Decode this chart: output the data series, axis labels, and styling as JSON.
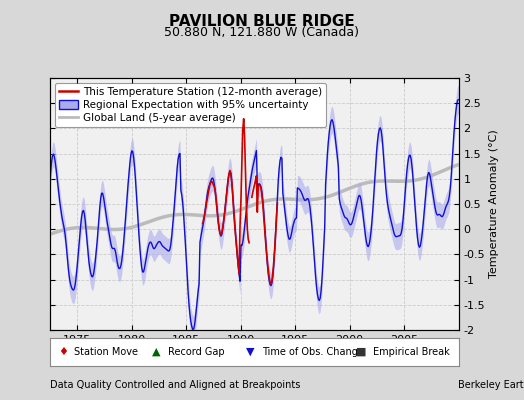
{
  "title": "PAVILION BLUE RIDGE",
  "subtitle": "50.880 N, 121.880 W (Canada)",
  "ylabel": "Temperature Anomaly (°C)",
  "footer_left": "Data Quality Controlled and Aligned at Breakpoints",
  "footer_right": "Berkeley Earth",
  "xlim": [
    1972.5,
    2010.0
  ],
  "ylim": [
    -2,
    3
  ],
  "yticks": [
    -2,
    -1.5,
    -1,
    -0.5,
    0,
    0.5,
    1,
    1.5,
    2,
    2.5,
    3
  ],
  "xticks": [
    1975,
    1980,
    1985,
    1990,
    1995,
    2000,
    2005
  ],
  "bg_color": "#d8d8d8",
  "plot_bg_color": "#f0f0f0",
  "regional_color": "#1111cc",
  "regional_fill_color": "#aaaaee",
  "station_color": "#cc0000",
  "global_color": "#bbbbbb",
  "global_linewidth": 2.5,
  "regional_linewidth": 1.0,
  "station_linewidth": 1.2,
  "title_fontsize": 11,
  "subtitle_fontsize": 9,
  "legend_fontsize": 7.5,
  "tick_fontsize": 8,
  "ylabel_fontsize": 8,
  "footer_fontsize": 7
}
